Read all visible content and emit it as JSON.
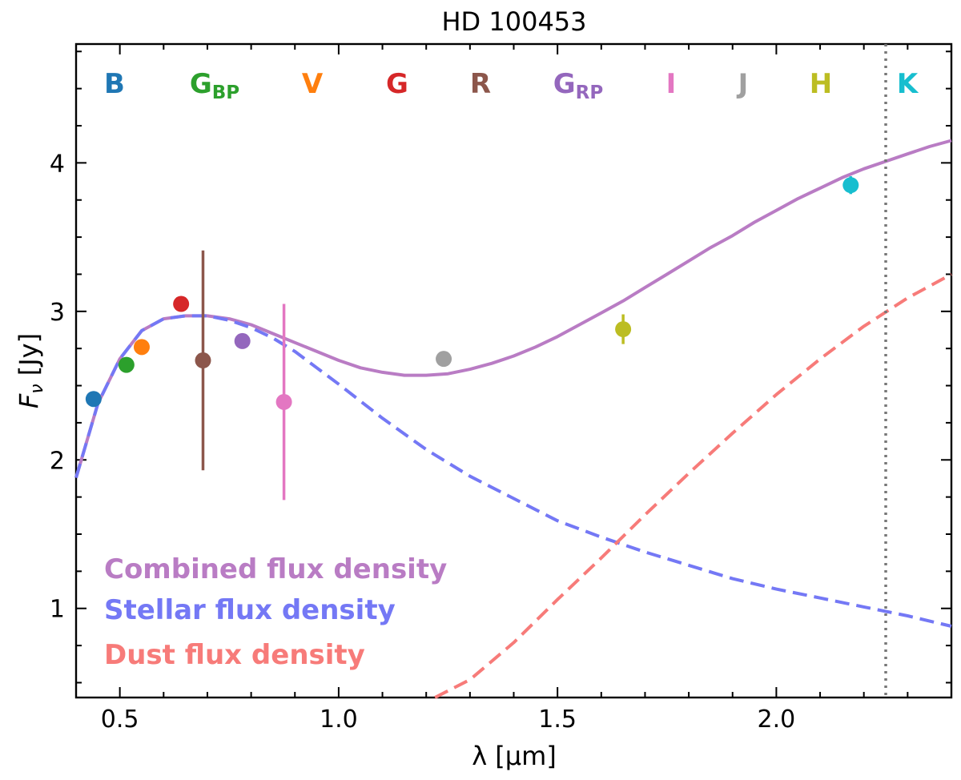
{
  "chart_data": {
    "type": "line",
    "title": "HD 100453",
    "xlabel": "λ [μm]",
    "ylabel": "F",
    "ylabel_sub": "ν",
    "ylabel_unit": " [Jy]",
    "xlim": [
      0.4,
      2.4
    ],
    "ylim": [
      0.4,
      4.8
    ],
    "x_ticks": [
      0.5,
      1.0,
      1.5,
      2.0
    ],
    "x_tick_labels": [
      "0.5",
      "1.0",
      "1.5",
      "2.0"
    ],
    "y_ticks": [
      1,
      2,
      3,
      4
    ],
    "y_tick_labels": [
      "1",
      "2",
      "3",
      "4"
    ],
    "vline_x": 2.25,
    "bands": [
      {
        "main": "B",
        "sub": "",
        "color": "#1f77b4",
        "lam": 0.44,
        "flux": 2.41,
        "err": 0.0
      },
      {
        "main": "G",
        "sub": "BP",
        "color": "#2ca02c",
        "lam": 0.515,
        "flux": 2.64,
        "err": 0.0
      },
      {
        "main": "V",
        "sub": "",
        "color": "#ff7f0e",
        "lam": 0.55,
        "flux": 2.76,
        "err": 0.0
      },
      {
        "main": "G",
        "sub": "",
        "color": "#d62728",
        "lam": 0.64,
        "flux": 3.05,
        "err": 0.0
      },
      {
        "main": "R",
        "sub": "",
        "color": "#8c564b",
        "lam": 0.69,
        "flux": 2.67,
        "err": 0.74
      },
      {
        "main": "G",
        "sub": "RP",
        "color": "#9467bd",
        "lam": 0.78,
        "flux": 2.8,
        "err": 0.0
      },
      {
        "main": "I",
        "sub": "",
        "color": "#e377c2",
        "lam": 0.875,
        "flux": 2.39,
        "err": 0.66
      },
      {
        "main": "J",
        "sub": "",
        "color": "#a0a0a0",
        "lam": 1.24,
        "flux": 2.68,
        "err": 0.05
      },
      {
        "main": "H",
        "sub": "",
        "color": "#bcbd22",
        "lam": 1.65,
        "flux": 2.88,
        "err": 0.1
      },
      {
        "main": "K",
        "sub": "",
        "color": "#17becf",
        "lam": 2.17,
        "flux": 3.85,
        "err": 0.06
      }
    ],
    "series": [
      {
        "name": "Combined flux density",
        "color": "#b97cc4",
        "style": "solid",
        "x": [
          0.4,
          0.45,
          0.5,
          0.55,
          0.6,
          0.65,
          0.7,
          0.75,
          0.8,
          0.85,
          0.9,
          0.95,
          1.0,
          1.05,
          1.1,
          1.15,
          1.2,
          1.25,
          1.3,
          1.35,
          1.4,
          1.45,
          1.5,
          1.55,
          1.6,
          1.65,
          1.7,
          1.75,
          1.8,
          1.85,
          1.9,
          1.95,
          2.0,
          2.05,
          2.1,
          2.15,
          2.2,
          2.25,
          2.3,
          2.35,
          2.4
        ],
        "y": [
          1.88,
          2.38,
          2.68,
          2.87,
          2.95,
          2.97,
          2.97,
          2.95,
          2.91,
          2.85,
          2.79,
          2.73,
          2.67,
          2.62,
          2.59,
          2.57,
          2.57,
          2.58,
          2.61,
          2.65,
          2.7,
          2.76,
          2.83,
          2.91,
          2.99,
          3.07,
          3.16,
          3.25,
          3.34,
          3.43,
          3.51,
          3.6,
          3.68,
          3.76,
          3.83,
          3.9,
          3.96,
          4.01,
          4.06,
          4.11,
          4.15
        ]
      },
      {
        "name": "Stellar flux density",
        "color": "#7478f5",
        "style": "dashed",
        "x": [
          0.4,
          0.45,
          0.5,
          0.55,
          0.6,
          0.65,
          0.7,
          0.75,
          0.8,
          0.85,
          0.9,
          0.95,
          1.0,
          1.1,
          1.2,
          1.3,
          1.4,
          1.5,
          1.6,
          1.7,
          1.8,
          1.9,
          2.0,
          2.1,
          2.2,
          2.3,
          2.4
        ],
        "y": [
          1.88,
          2.38,
          2.68,
          2.87,
          2.95,
          2.97,
          2.97,
          2.94,
          2.89,
          2.82,
          2.73,
          2.62,
          2.51,
          2.28,
          2.07,
          1.89,
          1.74,
          1.59,
          1.48,
          1.38,
          1.29,
          1.2,
          1.13,
          1.07,
          1.01,
          0.95,
          0.88
        ]
      },
      {
        "name": "Dust flux density",
        "color": "#f77b79",
        "style": "dashed",
        "x": [
          1.22,
          1.3,
          1.4,
          1.5,
          1.6,
          1.7,
          1.8,
          1.9,
          2.0,
          2.1,
          2.2,
          2.3,
          2.4
        ],
        "y": [
          0.4,
          0.52,
          0.77,
          1.06,
          1.34,
          1.63,
          1.91,
          2.18,
          2.44,
          2.68,
          2.9,
          3.09,
          3.25
        ]
      }
    ]
  }
}
